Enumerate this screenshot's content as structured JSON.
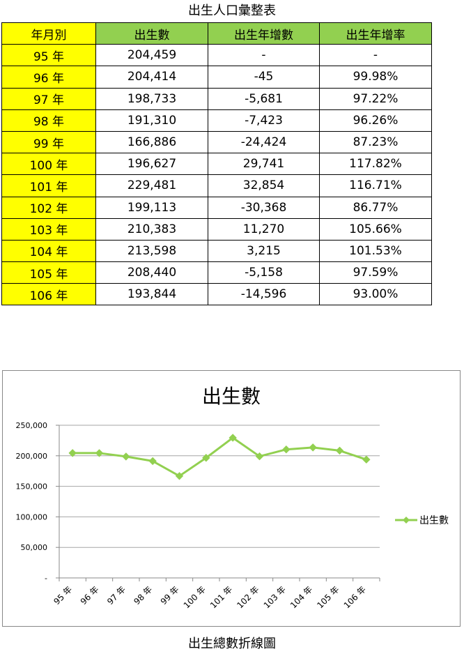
{
  "table": {
    "title": "出生人口彙整表",
    "headers": [
      "年月別",
      "出生數",
      "出生年增數",
      "出生年增率"
    ],
    "rows": [
      [
        "95 年",
        "204,459",
        "-",
        "-"
      ],
      [
        "96 年",
        "204,414",
        "-45",
        "99.98%"
      ],
      [
        "97 年",
        "198,733",
        "-5,681",
        "97.22%"
      ],
      [
        "98 年",
        "191,310",
        "-7,423",
        "96.26%"
      ],
      [
        "99 年",
        "166,886",
        "-24,424",
        "87.23%"
      ],
      [
        "100 年",
        "196,627",
        "29,741",
        "117.82%"
      ],
      [
        "101 年",
        "229,481",
        "32,854",
        "116.71%"
      ],
      [
        "102 年",
        "199,113",
        "-30,368",
        "86.77%"
      ],
      [
        "103 年",
        "210,383",
        "11,270",
        "105.66%"
      ],
      [
        "104 年",
        "213,598",
        "3,215",
        "101.53%"
      ],
      [
        "105 年",
        "208,440",
        "-5,158",
        "97.59%"
      ],
      [
        "106 年",
        "193,844",
        "-14,596",
        "93.00%"
      ]
    ],
    "colors": {
      "month_column": "#ffff00",
      "header": "#92d050"
    }
  },
  "chart_data": {
    "type": "line",
    "title": "出生數",
    "categories": [
      "95 年",
      "96 年",
      "97 年",
      "98 年",
      "99 年",
      "100 年",
      "101 年",
      "102 年",
      "103 年",
      "104 年",
      "105 年",
      "106 年"
    ],
    "series": [
      {
        "name": "出生數",
        "values": [
          204459,
          204414,
          198733,
          191310,
          166886,
          196627,
          229481,
          199113,
          210383,
          213598,
          208440,
          193844
        ],
        "color": "#92d050",
        "marker": "diamond"
      }
    ],
    "yticks": [
      0,
      50000,
      100000,
      150000,
      200000,
      250000
    ],
    "ytick_labels": [
      "-",
      "50,000",
      "100,000",
      "150,000",
      "200,000",
      "250,000"
    ],
    "ylim": [
      0,
      250000
    ],
    "grid": true,
    "legend": "right"
  },
  "caption": "出生總數折線圖"
}
